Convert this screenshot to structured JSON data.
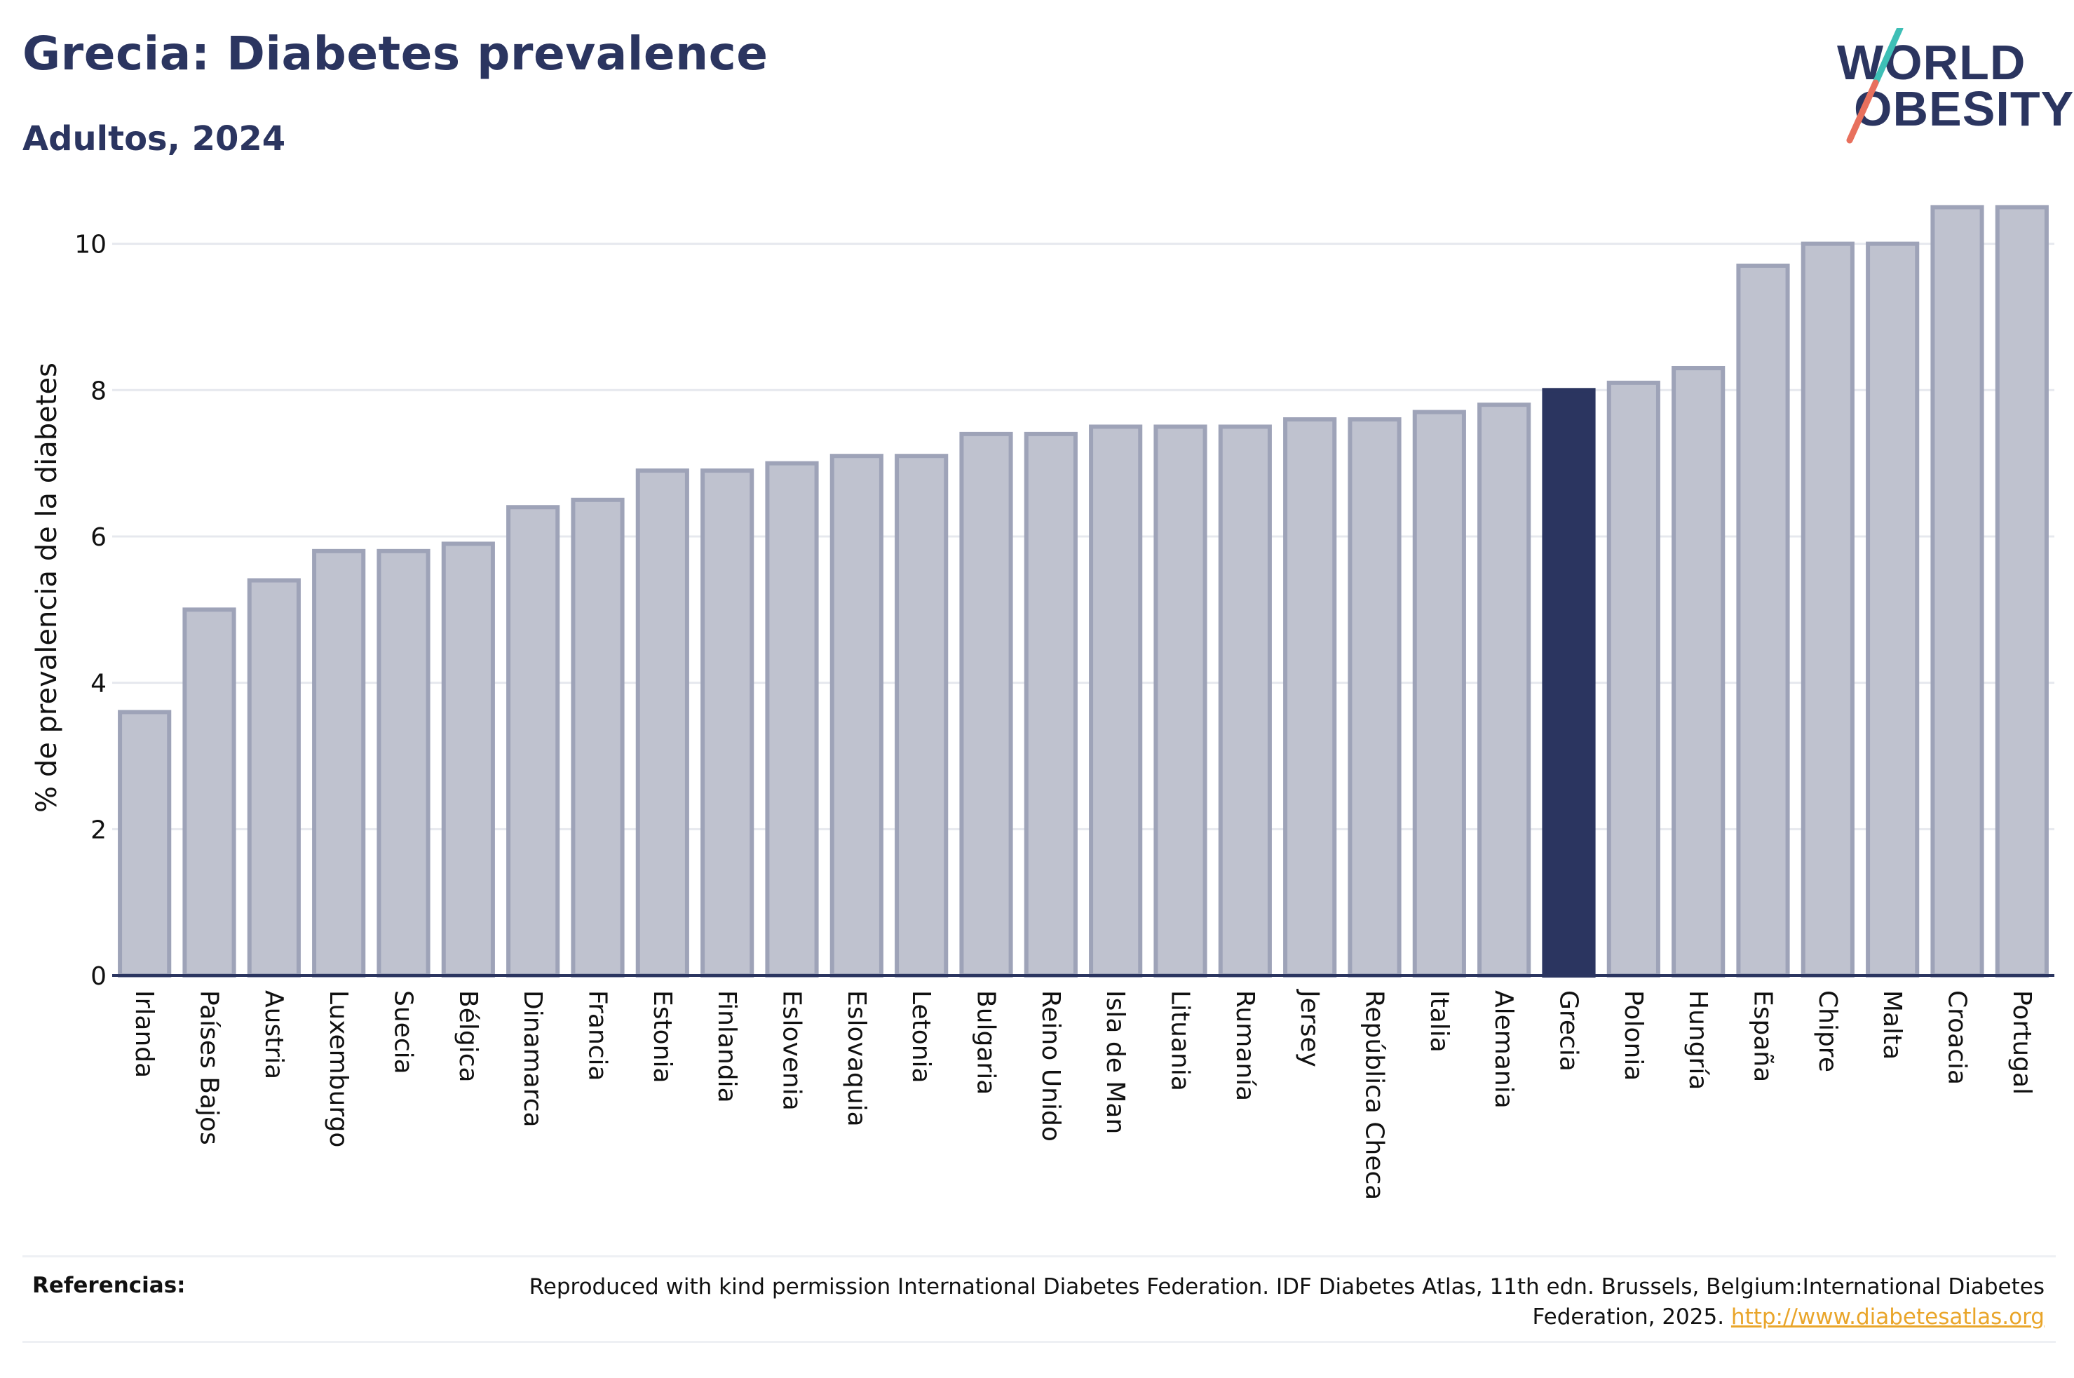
{
  "header": {
    "title": "Grecia: Diabetes prevalence",
    "subtitle": "Adultos, 2024"
  },
  "logo": {
    "line1": "WORLD",
    "line2": "OBESITY"
  },
  "colors": {
    "highlight": "#2b3560",
    "bar_fill": "#bfc2cf",
    "bar_stroke": "#9ea3b8",
    "accent_teal": "#3ebfb6",
    "accent_coral": "#e8705d",
    "link": "#e9a52a"
  },
  "chart_data": {
    "type": "bar",
    "ylabel": "% de prevalencia de la diabetes",
    "ylim": [
      0,
      10.6
    ],
    "yticks": [
      0,
      2,
      4,
      6,
      8,
      10
    ],
    "grid": true,
    "highlight": "Grecia",
    "categories": [
      "Irlanda",
      "Países Bajos",
      "Austria",
      "Luxemburgo",
      "Suecia",
      "Bélgica",
      "Dinamarca",
      "Francia",
      "Estonia",
      "Finlandia",
      "Eslovenia",
      "Eslovaquia",
      "Letonia",
      "Bulgaria",
      "Reino Unido",
      "Isla de Man",
      "Lituania",
      "Rumanía",
      "Jersey",
      "República Checa",
      "Italia",
      "Alemania",
      "Grecia",
      "Polonia",
      "Hungría",
      "España",
      "Chipre",
      "Malta",
      "Croacia",
      "Portugal"
    ],
    "values": [
      3.6,
      5.0,
      5.4,
      5.8,
      5.8,
      5.9,
      6.4,
      6.5,
      6.9,
      6.9,
      7.0,
      7.1,
      7.1,
      7.4,
      7.4,
      7.5,
      7.5,
      7.5,
      7.6,
      7.6,
      7.7,
      7.8,
      8.0,
      8.1,
      8.3,
      9.7,
      10.0,
      10.0,
      10.5,
      10.5
    ]
  },
  "references": {
    "label": "Referencias:",
    "text": "Reproduced with kind permission International Diabetes Federation. IDF Diabetes Atlas, 11th edn. Brussels, Belgium:International Diabetes Federation, 2025. ",
    "link": "http://www.diabetesatlas.org"
  }
}
